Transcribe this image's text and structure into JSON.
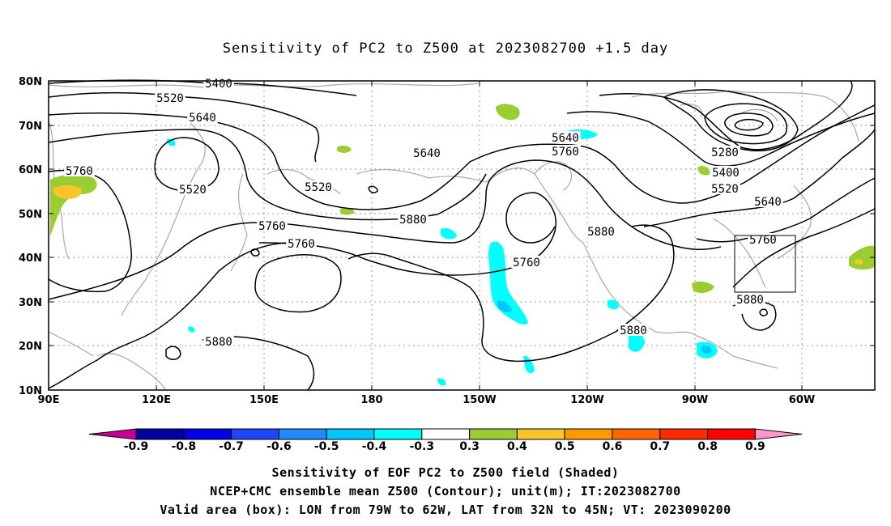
{
  "title": "Sensitivity of PC2 to Z500 at 2023082700 +1.5 day",
  "map": {
    "lat_ticks": [
      "80N",
      "70N",
      "60N",
      "50N",
      "40N",
      "30N",
      "20N",
      "10N"
    ],
    "lon_ticks": [
      "90E",
      "120E",
      "150E",
      "180",
      "150W",
      "120W",
      "90W",
      "60W"
    ],
    "contour_labels": [
      "5400",
      "5520",
      "5640",
      "5760",
      "5520",
      "5640",
      "5520",
      "5760",
      "5760",
      "5880",
      "5880",
      "5640",
      "5760",
      "5880",
      "5760",
      "5880",
      "5280",
      "5400",
      "5520",
      "5640",
      "5760",
      "5880"
    ],
    "valid_box": {
      "lon_from": "79W",
      "lon_to": "62W",
      "lat_from": "32N",
      "lat_to": "45N"
    },
    "colors": {
      "land_outline": "#a8a8a8",
      "contour": "#000000",
      "pos_0_3": "#9acd32",
      "pos_0_4": "#f9c62a",
      "neg_0_3": "#00ffff",
      "neg_0_4": "#00c8ff"
    }
  },
  "colorbar": {
    "labels": [
      "-0.9",
      "-0.8",
      "-0.7",
      "-0.6",
      "-0.5",
      "-0.4",
      "-0.3",
      "0.3",
      "0.4",
      "0.5",
      "0.6",
      "0.7",
      "0.8",
      "0.9"
    ],
    "colors": [
      "#c80096",
      "#0000a0",
      "#0000e6",
      "#1e46ff",
      "#1e8cff",
      "#00c8ff",
      "#00ffff",
      "#ffffff",
      "#9acd32",
      "#f9c62a",
      "#ff9900",
      "#ff6600",
      "#ff2a00",
      "#ff0000",
      "#ff96c8"
    ]
  },
  "caption": {
    "line1": "Sensitivity of EOF PC2 to Z500 field (Shaded)",
    "line2": "NCEP+CMC ensemble mean Z500 (Contour); unit(m); IT:2023082700",
    "line3": "Valid area (box): LON from 79W to 62W, LAT from 32N to 45N; VT: 2023090200"
  }
}
